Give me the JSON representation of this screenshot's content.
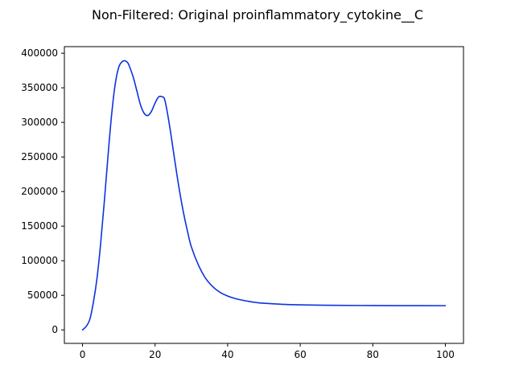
{
  "chart_data": {
    "type": "line",
    "title": "Non-Filtered: Original proinflammatory_cytokine__C",
    "xlabel": "",
    "ylabel": "",
    "xlim": [
      -5,
      105
    ],
    "ylim": [
      -19500,
      409500
    ],
    "x_ticks": [
      0,
      20,
      40,
      60,
      80,
      100
    ],
    "x_tick_labels": [
      "0",
      "20",
      "40",
      "60",
      "80",
      "100"
    ],
    "y_ticks": [
      0,
      50000,
      100000,
      150000,
      200000,
      250000,
      300000,
      350000,
      400000
    ],
    "y_tick_labels": [
      "0",
      "50000",
      "100000",
      "150000",
      "200000",
      "250000",
      "300000",
      "350000",
      "400000"
    ],
    "grid": false,
    "series": [
      {
        "color": "#0c33e0",
        "x": [
          0,
          1,
          2,
          3,
          4,
          5,
          6,
          7,
          8,
          9,
          10,
          11,
          11.7,
          12.5,
          13,
          14,
          15,
          16,
          17,
          18,
          19,
          20,
          21,
          22,
          22.5,
          23,
          24,
          25,
          26,
          27,
          28,
          29,
          30,
          32,
          34,
          36,
          38,
          40,
          42,
          44,
          46,
          48,
          50,
          55,
          60,
          65,
          70,
          80,
          90,
          100
        ],
        "y": [
          0,
          5000,
          15000,
          40000,
          75000,
          125000,
          185000,
          250000,
          310000,
          355000,
          380000,
          388000,
          389000,
          386000,
          380000,
          365000,
          345000,
          325000,
          313000,
          310000,
          316000,
          328000,
          337000,
          337000,
          335000,
          325000,
          295000,
          260000,
          225000,
          193000,
          165000,
          141000,
          120000,
          93000,
          74000,
          62000,
          54000,
          49000,
          45500,
          43000,
          41000,
          39500,
          38500,
          37000,
          36200,
          35800,
          35500,
          35200,
          35100,
          35000
        ]
      }
    ]
  }
}
